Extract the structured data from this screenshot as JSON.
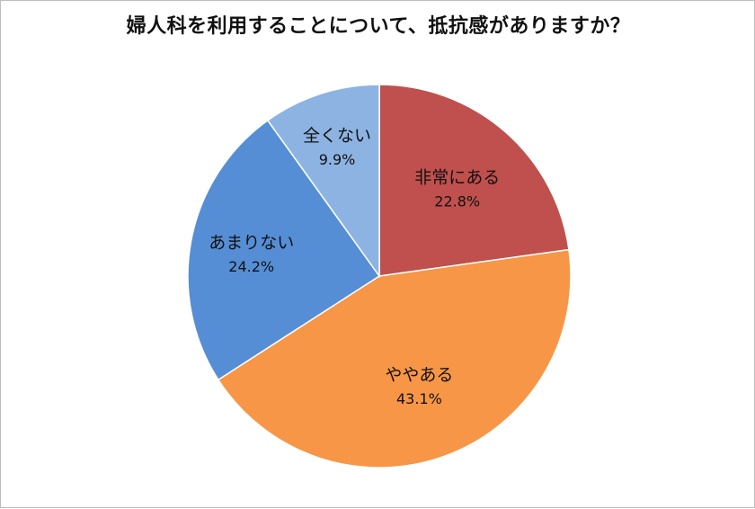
{
  "chart_data": {
    "type": "pie",
    "title": "婦人科を利用することについて、抵抗感がありますか？",
    "slices": [
      {
        "label": "非常にある",
        "value": 22.8,
        "value_text": "22.8%",
        "color": "#c0504d"
      },
      {
        "label": "ややある",
        "value": 43.1,
        "value_text": "43.1%",
        "color": "#f79646"
      },
      {
        "label": "あまりない",
        "value": 24.2,
        "value_text": "24.2%",
        "color": "#558ed5"
      },
      {
        "label": "全くない",
        "value": 9.9,
        "value_text": "9.9%",
        "color": "#8db3e2"
      }
    ],
    "start_angle_deg": 0,
    "direction": "clockwise",
    "legend": "none",
    "data_labels": "inside"
  }
}
